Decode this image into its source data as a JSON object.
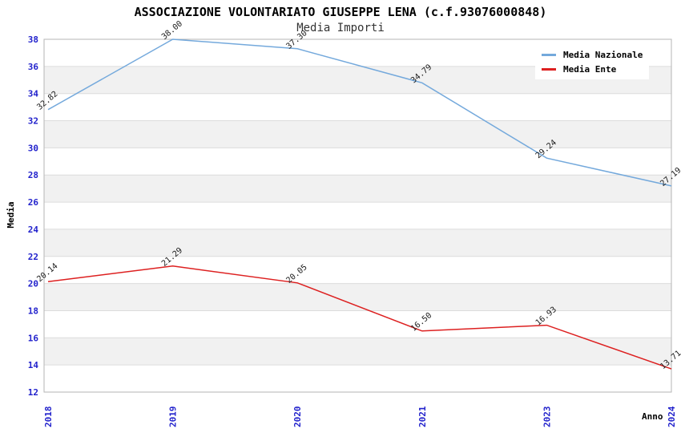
{
  "chart_data": {
    "type": "line",
    "title": "ASSOCIAZIONE VOLONTARIATO GIUSEPPE LENA (c.f.93076000848)",
    "subtitle": "Media Importi",
    "xlabel": "Anno",
    "ylabel": "Media",
    "categories": [
      "2018",
      "2019",
      "2020",
      "2021",
      "2023",
      "2024"
    ],
    "series": [
      {
        "name": "Media Nazionale",
        "color": "#74a9dc",
        "values": [
          32.82,
          38.0,
          37.3,
          34.79,
          29.24,
          27.19
        ]
      },
      {
        "name": "Media Ente",
        "color": "#dd2020",
        "values": [
          20.14,
          21.29,
          20.05,
          16.5,
          16.93,
          13.71
        ]
      }
    ],
    "ylim": [
      12,
      38
    ],
    "ytick_step": 2,
    "grid": true,
    "legend_position": "top-right",
    "style": {
      "tick_label_color": "#2222cc",
      "grid_color": "#dcdcdc",
      "band_color": "#f1f1f1",
      "axis_color": "#b5b5b5",
      "point_label_color": "#1a1a1a"
    }
  }
}
